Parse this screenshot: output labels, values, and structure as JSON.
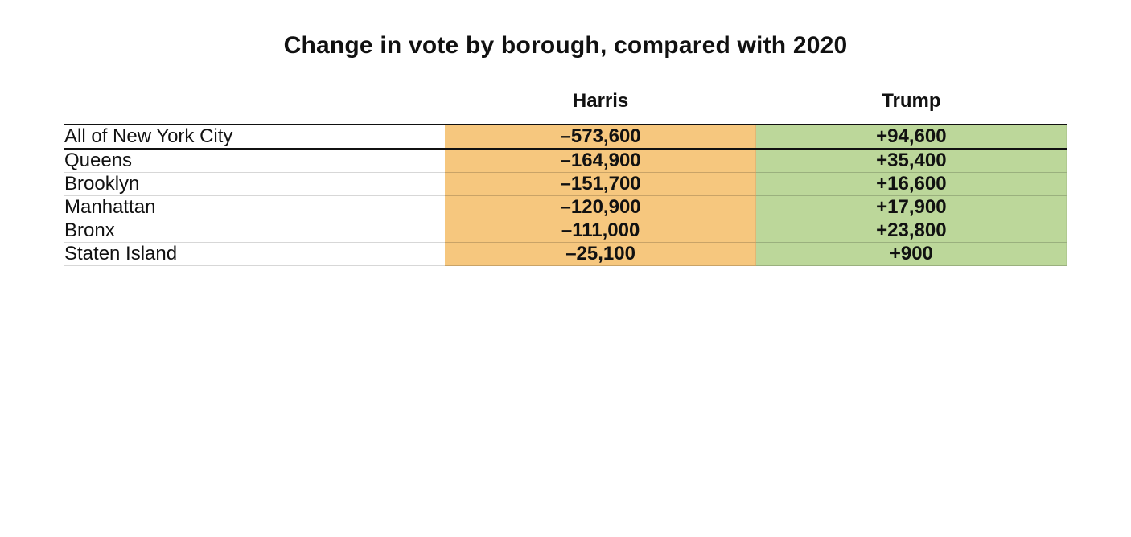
{
  "chart": {
    "type": "table",
    "title": "Change in vote by borough, compared with 2020",
    "title_fontsize": 30,
    "title_fontweight": 700,
    "font_family": "Franklin Gothic / Arial",
    "background_color": "#ffffff",
    "text_color": "#111111",
    "columns": [
      {
        "key": "label",
        "header": "",
        "align": "left",
        "width_pct": 38
      },
      {
        "key": "harris",
        "header": "Harris",
        "align": "center",
        "width_pct": 31,
        "bg_color": "#f6c77e"
      },
      {
        "key": "trump",
        "header": "Trump",
        "align": "center",
        "width_pct": 31,
        "bg_color": "#bcd79a"
      }
    ],
    "header_fontsize": 24,
    "header_fontweight": 700,
    "cell_fontsize": 24,
    "label_fontweight": 400,
    "value_fontweight": 700,
    "rule_color_heavy": "#111111",
    "rule_color_light": "#d7d7d7",
    "neg_bg": "#f6c77e",
    "pos_bg": "#bcd79a",
    "rows": [
      {
        "label": "All of New York City",
        "harris": "–573,600",
        "trump": "+94,600",
        "emphasis": true
      },
      {
        "label": "Queens",
        "harris": "–164,900",
        "trump": "+35,400"
      },
      {
        "label": "Brooklyn",
        "harris": "–151,700",
        "trump": "+16,600"
      },
      {
        "label": "Manhattan",
        "harris": "–120,900",
        "trump": "+17,900"
      },
      {
        "label": "Bronx",
        "harris": "–111,000",
        "trump": "+23,800"
      },
      {
        "label": "Staten Island",
        "harris": "–25,100",
        "trump": "+900"
      }
    ]
  }
}
